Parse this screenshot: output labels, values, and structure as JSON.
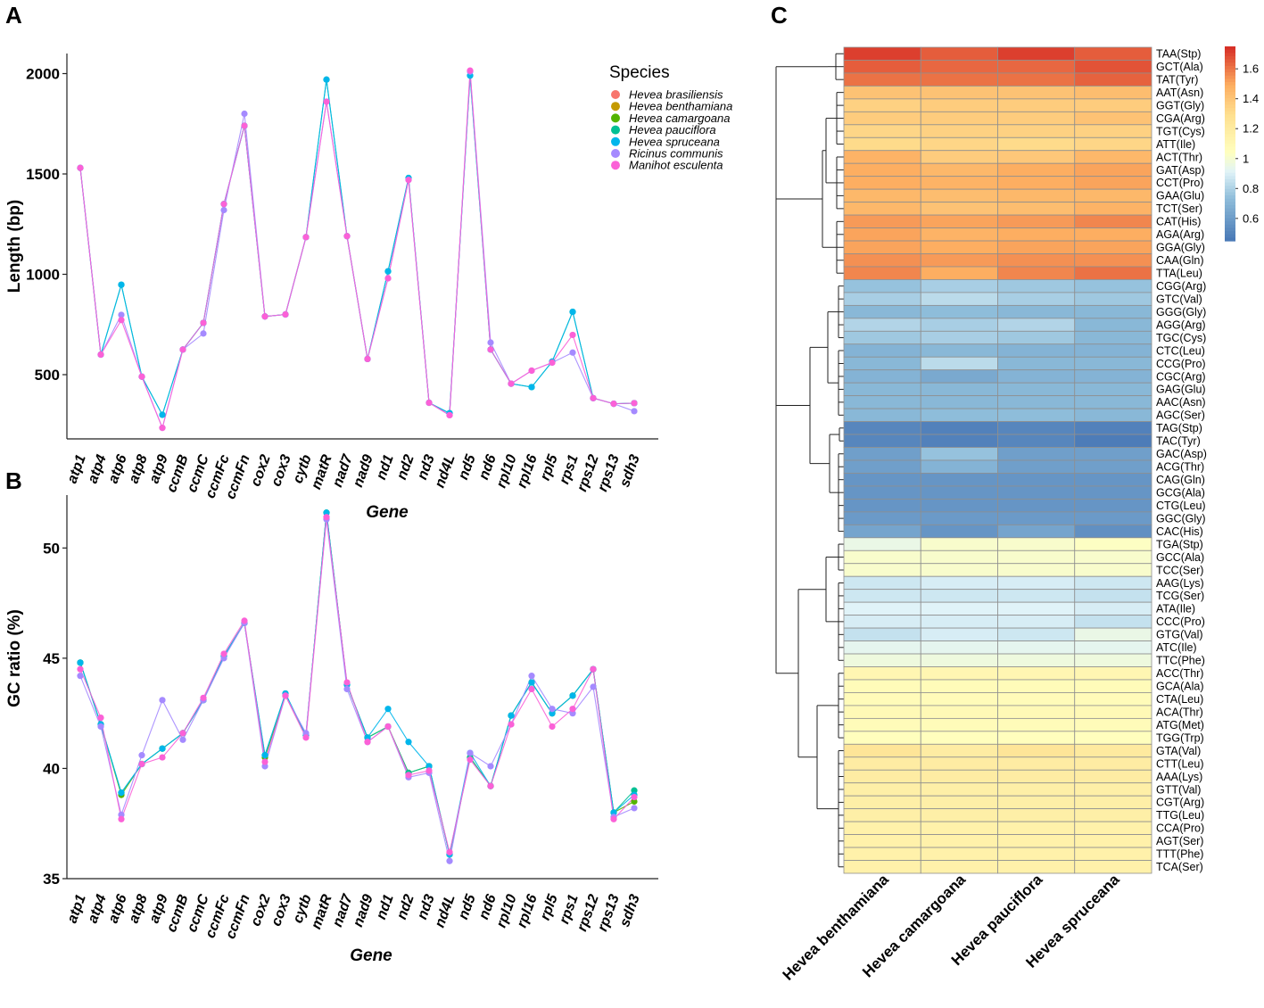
{
  "panel_labels": {
    "a": "A",
    "b": "B",
    "c": "C"
  },
  "legend": {
    "title": "Species",
    "items": [
      {
        "name": "Hevea brasiliensis",
        "color": "#f8766d"
      },
      {
        "name": "Hevea benthamiana",
        "color": "#c49a00"
      },
      {
        "name": "Hevea camargoana",
        "color": "#53b400"
      },
      {
        "name": "Hevea pauciflora",
        "color": "#00c094"
      },
      {
        "name": "Hevea spruceana",
        "color": "#00b6eb"
      },
      {
        "name": "Ricinus communis",
        "color": "#a58aff"
      },
      {
        "name": "Manihot esculenta",
        "color": "#fb61d7"
      }
    ]
  },
  "chart_data": [
    {
      "id": "A",
      "type": "line",
      "title": "",
      "xlabel": "Gene",
      "ylabel": "Length (bp)",
      "ylim": [
        180,
        2100
      ],
      "yticks": [
        500,
        1000,
        1500,
        2000
      ],
      "categories": [
        "atp1",
        "atp4",
        "atp6",
        "atp8",
        "atp9",
        "ccmB",
        "ccmC",
        "ccmFc",
        "ccmFn",
        "cox2",
        "cox3",
        "cytb",
        "matR",
        "nad7",
        "nad9",
        "nd1",
        "nd2",
        "nd3",
        "nd4L",
        "nd5",
        "nd6",
        "rpl10",
        "rpl16",
        "rpl5",
        "rps1",
        "rps12",
        "rps13",
        "sdh3"
      ],
      "series": [
        {
          "name": "Hevea pauciflora",
          "values": [
            1530,
            600,
            948,
            490,
            300,
            625,
            758,
            1350,
            1740,
            790,
            800,
            1185,
            1970,
            1190,
            578,
            1015,
            1480,
            360,
            308,
            1990,
            625,
            455,
            438,
            565,
            813,
            383,
            355,
            358
          ]
        },
        {
          "name": "Hevea spruceana",
          "values": [
            1530,
            600,
            948,
            490,
            300,
            625,
            758,
            1350,
            1740,
            790,
            800,
            1185,
            1970,
            1190,
            578,
            1015,
            1480,
            360,
            308,
            1990,
            625,
            455,
            438,
            565,
            813,
            383,
            355,
            358
          ]
        },
        {
          "name": "Ricinus communis",
          "values": [
            1530,
            600,
            798,
            490,
            235,
            625,
            705,
            1320,
            1800,
            790,
            800,
            1185,
            1860,
            1190,
            578,
            980,
            1470,
            360,
            298,
            2010,
            660,
            455,
            520,
            560,
            610,
            383,
            355,
            318
          ]
        },
        {
          "name": "Manihot esculenta",
          "values": [
            1530,
            600,
            772,
            490,
            235,
            625,
            758,
            1350,
            1740,
            790,
            800,
            1185,
            1860,
            1190,
            578,
            980,
            1470,
            360,
            298,
            2015,
            625,
            455,
            520,
            560,
            698,
            383,
            355,
            358
          ]
        }
      ]
    },
    {
      "id": "B",
      "type": "line",
      "title": "",
      "xlabel": "Gene",
      "ylabel": "GC ratio (%)",
      "ylim": [
        35,
        52.4
      ],
      "yticks": [
        35,
        40,
        45,
        50
      ],
      "categories": [
        "atp1",
        "atp4",
        "atp6",
        "atp8",
        "atp9",
        "ccmB",
        "ccmC",
        "ccmFc",
        "ccmFn",
        "cox2",
        "cox3",
        "cytb",
        "matR",
        "nad7",
        "nad9",
        "nd1",
        "nd2",
        "nd3",
        "nd4L",
        "nd5",
        "nd6",
        "rpl10",
        "rpl16",
        "rpl5",
        "rps1",
        "rps12",
        "rps13",
        "sdh3"
      ],
      "series": [
        {
          "name": "Hevea camargoana",
          "values": [
            44.8,
            42.0,
            38.8,
            40.2,
            40.9,
            41.6,
            43.1,
            45.1,
            46.6,
            40.5,
            43.3,
            41.5,
            51.6,
            43.8,
            41.4,
            41.9,
            39.8,
            40.1,
            36.1,
            40.5,
            39.2,
            42.4,
            43.9,
            42.5,
            43.3,
            44.5,
            38.0,
            38.5
          ]
        },
        {
          "name": "Hevea pauciflora",
          "values": [
            44.8,
            42.0,
            38.9,
            40.2,
            40.9,
            41.6,
            43.1,
            45.1,
            46.6,
            40.6,
            43.4,
            41.5,
            51.6,
            43.8,
            41.4,
            41.9,
            39.8,
            40.1,
            36.1,
            40.5,
            39.2,
            42.4,
            43.9,
            42.5,
            43.3,
            44.5,
            38.0,
            39.0
          ]
        },
        {
          "name": "Hevea spruceana",
          "values": [
            44.8,
            42.0,
            38.9,
            40.2,
            40.9,
            41.6,
            43.1,
            45.1,
            46.6,
            40.6,
            43.4,
            41.5,
            51.6,
            43.8,
            41.4,
            42.7,
            41.2,
            40.1,
            36.1,
            40.7,
            39.2,
            42.4,
            43.9,
            42.5,
            43.3,
            44.5,
            38.0,
            38.8
          ]
        },
        {
          "name": "Ricinus communis",
          "values": [
            44.2,
            41.9,
            37.9,
            40.6,
            43.1,
            41.3,
            43.1,
            45.0,
            46.6,
            40.1,
            43.3,
            41.6,
            51.3,
            43.6,
            41.2,
            41.9,
            39.6,
            39.8,
            35.8,
            40.7,
            40.1,
            42.0,
            44.2,
            42.7,
            42.5,
            43.7,
            37.8,
            38.2
          ]
        },
        {
          "name": "Manihot esculenta",
          "values": [
            44.5,
            42.3,
            37.7,
            40.2,
            40.5,
            41.6,
            43.2,
            45.2,
            46.7,
            40.3,
            43.3,
            41.4,
            51.4,
            43.9,
            41.2,
            41.9,
            39.7,
            39.9,
            36.2,
            40.4,
            39.2,
            42.0,
            43.6,
            41.9,
            42.7,
            44.5,
            37.7,
            38.7
          ]
        }
      ]
    },
    {
      "id": "C",
      "type": "heatmap",
      "title": "",
      "columns": [
        "Hevea benthamiana",
        "Hevea camargoana",
        "Hevea pauciflora",
        "Hevea spruceana"
      ],
      "colorbar": {
        "ticks": [
          0.6,
          0.8,
          1,
          1.2,
          1.4,
          1.6
        ],
        "min": 0.45,
        "max": 1.75,
        "low": "#4575b4",
        "mid": "#ffffbf",
        "high": "#d73027"
      },
      "rows": [
        {
          "label": "TAA(Stp)",
          "values": [
            1.72,
            1.66,
            1.72,
            1.66
          ]
        },
        {
          "label": "GCT(Ala)",
          "values": [
            1.66,
            1.64,
            1.64,
            1.68
          ]
        },
        {
          "label": "TAT(Tyr)",
          "values": [
            1.62,
            1.62,
            1.62,
            1.65
          ]
        },
        {
          "label": "AAT(Asn)",
          "values": [
            1.42,
            1.42,
            1.42,
            1.44
          ]
        },
        {
          "label": "GGT(Gly)",
          "values": [
            1.36,
            1.38,
            1.38,
            1.38
          ]
        },
        {
          "label": "CGA(Arg)",
          "values": [
            1.38,
            1.38,
            1.38,
            1.42
          ]
        },
        {
          "label": "TGT(Cys)",
          "values": [
            1.34,
            1.36,
            1.36,
            1.36
          ]
        },
        {
          "label": "ATT(Ile)",
          "values": [
            1.32,
            1.34,
            1.32,
            1.34
          ]
        },
        {
          "label": "ACT(Thr)",
          "values": [
            1.48,
            1.38,
            1.4,
            1.46
          ]
        },
        {
          "label": "GAT(Asp)",
          "values": [
            1.5,
            1.46,
            1.5,
            1.52
          ]
        },
        {
          "label": "CCT(Pro)",
          "values": [
            1.5,
            1.48,
            1.5,
            1.52
          ]
        },
        {
          "label": "GAA(Glu)",
          "values": [
            1.46,
            1.44,
            1.46,
            1.46
          ]
        },
        {
          "label": "TCT(Ser)",
          "values": [
            1.46,
            1.42,
            1.44,
            1.48
          ]
        },
        {
          "label": "CAT(His)",
          "values": [
            1.54,
            1.52,
            1.54,
            1.58
          ]
        },
        {
          "label": "AGA(Arg)",
          "values": [
            1.52,
            1.48,
            1.5,
            1.5
          ]
        },
        {
          "label": "GGA(Gly)",
          "values": [
            1.52,
            1.5,
            1.52,
            1.52
          ]
        },
        {
          "label": "CAA(Gln)",
          "values": [
            1.56,
            1.54,
            1.56,
            1.56
          ]
        },
        {
          "label": "TTA(Leu)",
          "values": [
            1.58,
            1.5,
            1.58,
            1.62
          ]
        },
        {
          "label": "CGG(Arg)",
          "values": [
            0.76,
            0.8,
            0.78,
            0.76
          ]
        },
        {
          "label": "GTC(Val)",
          "values": [
            0.8,
            0.84,
            0.8,
            0.78
          ]
        },
        {
          "label": "GGG(Gly)",
          "values": [
            0.72,
            0.74,
            0.72,
            0.72
          ]
        },
        {
          "label": "AGG(Arg)",
          "values": [
            0.82,
            0.8,
            0.82,
            0.72
          ]
        },
        {
          "label": "TGC(Cys)",
          "values": [
            0.78,
            0.8,
            0.78,
            0.72
          ]
        },
        {
          "label": "CTC(Leu)",
          "values": [
            0.7,
            0.72,
            0.7,
            0.7
          ]
        },
        {
          "label": "CCG(Pro)",
          "values": [
            0.72,
            0.84,
            0.72,
            0.72
          ]
        },
        {
          "label": "CGC(Arg)",
          "values": [
            0.7,
            0.66,
            0.7,
            0.7
          ]
        },
        {
          "label": "GAG(Glu)",
          "values": [
            0.72,
            0.72,
            0.72,
            0.72
          ]
        },
        {
          "label": "AAC(Asn)",
          "values": [
            0.72,
            0.72,
            0.72,
            0.72
          ]
        },
        {
          "label": "AGC(Ser)",
          "values": [
            0.72,
            0.74,
            0.74,
            0.72
          ]
        },
        {
          "label": "TAG(Stp)",
          "values": [
            0.52,
            0.5,
            0.52,
            0.5
          ]
        },
        {
          "label": "TAC(Tyr)",
          "values": [
            0.52,
            0.5,
            0.52,
            0.48
          ]
        },
        {
          "label": "GAC(Asp)",
          "values": [
            0.62,
            0.76,
            0.62,
            0.62
          ]
        },
        {
          "label": "ACG(Thr)",
          "values": [
            0.62,
            0.7,
            0.62,
            0.62
          ]
        },
        {
          "label": "CAG(Gln)",
          "values": [
            0.58,
            0.58,
            0.58,
            0.58
          ]
        },
        {
          "label": "GCG(Ala)",
          "values": [
            0.58,
            0.58,
            0.58,
            0.58
          ]
        },
        {
          "label": "CTG(Leu)",
          "values": [
            0.58,
            0.58,
            0.58,
            0.58
          ]
        },
        {
          "label": "GGC(Gly)",
          "values": [
            0.6,
            0.6,
            0.6,
            0.6
          ]
        },
        {
          "label": "CAC(His)",
          "values": [
            0.64,
            0.58,
            0.64,
            0.56
          ]
        },
        {
          "label": "TGA(Stp)",
          "values": [
            0.96,
            1.02,
            1.02,
            1.04
          ]
        },
        {
          "label": "GCC(Ala)",
          "values": [
            1.02,
            1.02,
            1.02,
            1.02
          ]
        },
        {
          "label": "TCC(Ser)",
          "values": [
            1.02,
            1.02,
            1.02,
            1.02
          ]
        },
        {
          "label": "AAG(Lys)",
          "values": [
            0.88,
            0.9,
            0.9,
            0.88
          ]
        },
        {
          "label": "TCG(Ser)",
          "values": [
            0.88,
            0.88,
            0.88,
            0.86
          ]
        },
        {
          "label": "ATA(Ile)",
          "values": [
            0.92,
            0.92,
            0.92,
            0.9
          ]
        },
        {
          "label": "CCC(Pro)",
          "values": [
            0.9,
            0.9,
            0.9,
            0.86
          ]
        },
        {
          "label": "GTG(Val)",
          "values": [
            0.86,
            0.9,
            0.88,
            0.96
          ]
        },
        {
          "label": "ATC(Ile)",
          "values": [
            0.94,
            0.94,
            0.94,
            0.94
          ]
        },
        {
          "label": "TTC(Phe)",
          "values": [
            0.98,
            0.98,
            0.98,
            0.98
          ]
        },
        {
          "label": "ACC(Thr)",
          "values": [
            1.12,
            1.12,
            1.12,
            1.12
          ]
        },
        {
          "label": "GCA(Ala)",
          "values": [
            1.08,
            1.08,
            1.08,
            1.08
          ]
        },
        {
          "label": "CTA(Leu)",
          "values": [
            1.08,
            1.08,
            1.08,
            1.08
          ]
        },
        {
          "label": "ACA(Thr)",
          "values": [
            1.1,
            1.1,
            1.1,
            1.1
          ]
        },
        {
          "label": "ATG(Met)",
          "values": [
            1.08,
            1.08,
            1.08,
            1.08
          ]
        },
        {
          "label": "TGG(Trp)",
          "values": [
            1.06,
            1.06,
            1.06,
            1.06
          ]
        },
        {
          "label": "GTA(Val)",
          "values": [
            1.26,
            1.2,
            1.26,
            1.22
          ]
        },
        {
          "label": "CTT(Leu)",
          "values": [
            1.2,
            1.2,
            1.2,
            1.2
          ]
        },
        {
          "label": "AAA(Lys)",
          "values": [
            1.2,
            1.2,
            1.2,
            1.2
          ]
        },
        {
          "label": "GTT(Val)",
          "values": [
            1.18,
            1.18,
            1.18,
            1.18
          ]
        },
        {
          "label": "CGT(Arg)",
          "values": [
            1.18,
            1.18,
            1.18,
            1.18
          ]
        },
        {
          "label": "TTG(Leu)",
          "values": [
            1.18,
            1.18,
            1.18,
            1.18
          ]
        },
        {
          "label": "CCA(Pro)",
          "values": [
            1.16,
            1.16,
            1.16,
            1.16
          ]
        },
        {
          "label": "AGT(Ser)",
          "values": [
            1.16,
            1.16,
            1.16,
            1.16
          ]
        },
        {
          "label": "TTT(Phe)",
          "values": [
            1.16,
            1.16,
            1.16,
            1.16
          ]
        },
        {
          "label": "TCA(Ser)",
          "values": [
            1.16,
            1.16,
            1.16,
            1.16
          ]
        }
      ]
    }
  ]
}
